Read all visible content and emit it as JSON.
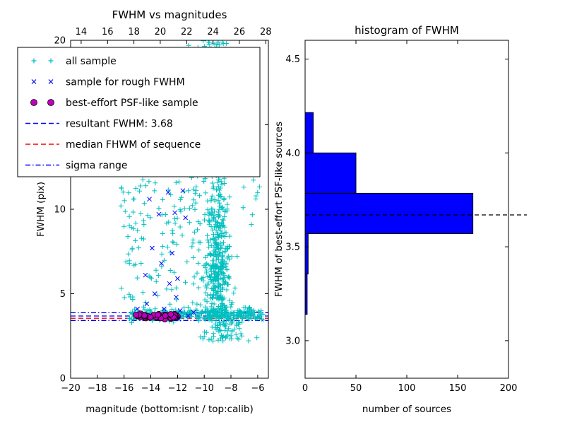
{
  "figure": {
    "background": "#ffffff"
  },
  "colors": {
    "cyan": "#00bfbf",
    "blue": "#0000ff",
    "magenta": "#bf00bf",
    "red": "#ff0000",
    "black": "#000000",
    "white": "#ffffff"
  },
  "chart_data": [
    {
      "type": "scatter",
      "title": "FWHM vs magnitudes",
      "xlabel": "magnitude (bottom:isnt / top:calib)",
      "ylabel": "FWHM (pix)",
      "x_bottom": {
        "range": [
          -20,
          -5.2
        ],
        "ticks": [
          -20,
          -18,
          -16,
          -14,
          -12,
          -10,
          -8,
          -6
        ]
      },
      "x_top": {
        "range": [
          13.2,
          28.2
        ],
        "ticks": [
          14,
          16,
          18,
          20,
          22,
          24,
          26,
          28
        ]
      },
      "y": {
        "range": [
          0,
          20
        ],
        "ticks": [
          0,
          5,
          10,
          15,
          20
        ]
      },
      "resultant_fwhm": 3.68,
      "series": [
        {
          "id": "all-sample",
          "name": "all sample",
          "marker": "plus",
          "color": "#00bfbf",
          "clusters": [
            {
              "n": 480,
              "mag": [
                "normal",
                -9.0,
                0.45
              ],
              "fwhm": [
                "lognormal",
                1.95,
                0.38
              ],
              "fwhm_clip": [
                2.2,
                20.5
              ]
            },
            {
              "n": 170,
              "mag": [
                "normal",
                -8.95,
                0.55
              ],
              "fwhm": [
                "uniform",
                12,
                20.3
              ]
            },
            {
              "n": 320,
              "mag": [
                "uniform",
                -15.6,
                -5.6
              ],
              "fwhm": [
                "normal",
                3.78,
                0.17
              ]
            },
            {
              "n": 120,
              "mag": [
                "uniform",
                -15.7,
                -10.2
              ],
              "fwhm": [
                "uniform",
                4.2,
                12.5
              ]
            },
            {
              "n": 45,
              "mag": [
                "uniform",
                -11.5,
                -6.8
              ],
              "fwhm": [
                "uniform",
                17.2,
                20.3
              ]
            },
            {
              "n": 55,
              "mag": [
                "normal",
                -8.4,
                0.9
              ],
              "fwhm": [
                "uniform",
                2.2,
                3.5
              ]
            },
            {
              "n": 22,
              "mag": [
                "uniform",
                -16.3,
                -14.7
              ],
              "fwhm": [
                "uniform",
                4.5,
                11.5
              ]
            },
            {
              "n": 14,
              "mag": [
                "uniform",
                -7.2,
                -5.7
              ],
              "fwhm": [
                "uniform",
                8.5,
                13
              ]
            }
          ]
        },
        {
          "id": "rough-fwhm-sample",
          "name": "sample for rough FWHM",
          "marker": "x",
          "color": "#0000ff",
          "points": [
            [
              -14.1,
              10.6
            ],
            [
              -12.7,
              11.0
            ],
            [
              -12.2,
              9.8
            ],
            [
              -13.4,
              9.7
            ],
            [
              -11.4,
              9.5
            ],
            [
              -13.9,
              7.7
            ],
            [
              -12.4,
              7.4
            ],
            [
              -13.2,
              6.8
            ],
            [
              -14.4,
              6.1
            ],
            [
              -12.0,
              5.9
            ],
            [
              -12.6,
              5.6
            ],
            [
              -13.7,
              5.0
            ],
            [
              -12.1,
              4.8
            ],
            [
              -14.3,
              4.4
            ],
            [
              -13.0,
              4.1
            ],
            [
              -11.8,
              4.0
            ],
            [
              -14.7,
              3.8
            ],
            [
              -13.3,
              3.6
            ],
            [
              -11.9,
              3.5
            ],
            [
              -11.2,
              3.7
            ],
            [
              -10.8,
              3.9
            ],
            [
              -15.0,
              4.1
            ],
            [
              -12.9,
              12.2
            ],
            [
              -11.6,
              11.1
            ]
          ]
        },
        {
          "id": "psf-like-sample",
          "name": "best-effort PSF-like sample",
          "marker": "circle",
          "color": "#bf00bf",
          "edge_color": "#000000",
          "clusters": [
            {
              "n": 65,
              "mag": [
                "uniform",
                -15.15,
                -12.0
              ],
              "fwhm": [
                "normal",
                3.66,
                0.07
              ]
            }
          ]
        }
      ],
      "hlines": [
        {
          "id": "resultant-fwhm",
          "label": "resultant FWHM: 3.68",
          "y": 3.68,
          "color": "#0000ff",
          "style": "dashed"
        },
        {
          "id": "median-fwhm",
          "label": "median FHWM of sequence",
          "y": 3.55,
          "color": "#ff0000",
          "style": "dashed"
        },
        {
          "id": "sigma-low",
          "label": "sigma range",
          "y": 3.42,
          "color": "#0000ff",
          "style": "dashdot"
        },
        {
          "id": "sigma-high",
          "label": "sigma range",
          "y": 3.88,
          "color": "#0000ff",
          "style": "dashdot"
        }
      ],
      "legend": {
        "items": [
          {
            "marker": "plus",
            "color": "#00bfbf",
            "label": "all sample"
          },
          {
            "marker": "x",
            "color": "#0000ff",
            "label": "sample for rough FWHM"
          },
          {
            "marker": "circle",
            "color": "#bf00bf",
            "edge_color": "#000000",
            "label": "best-effort PSF-like sample"
          },
          {
            "marker": "line-dashed",
            "color": "#0000ff",
            "label": "resultant FWHM: 3.68"
          },
          {
            "marker": "line-dashed",
            "color": "#ff0000",
            "label": "median FHWM of sequence"
          },
          {
            "marker": "line-dashdot",
            "color": "#0000ff",
            "label": "sigma range"
          }
        ]
      }
    },
    {
      "type": "bar",
      "orientation": "horizontal",
      "title": "histogram of FWHM",
      "xlabel": "number of sources",
      "ylabel": "FWHM of best-effort PSF-like sources",
      "xlim": [
        0,
        200
      ],
      "x_ticks": [
        0,
        50,
        100,
        150,
        200
      ],
      "ylim": [
        2.8,
        4.6
      ],
      "y_ticks": [
        3.0,
        3.5,
        4.0,
        4.5
      ],
      "bar_color": "#0000ff",
      "bins": [
        {
          "y0": 3.14,
          "y1": 3.355,
          "count": 2
        },
        {
          "y0": 3.355,
          "y1": 3.57,
          "count": 3
        },
        {
          "y0": 3.57,
          "y1": 3.785,
          "count": 165
        },
        {
          "y0": 3.785,
          "y1": 4.0,
          "count": 50
        },
        {
          "y0": 4.0,
          "y1": 4.215,
          "count": 8
        }
      ],
      "dashed_line_y": 3.67
    }
  ]
}
